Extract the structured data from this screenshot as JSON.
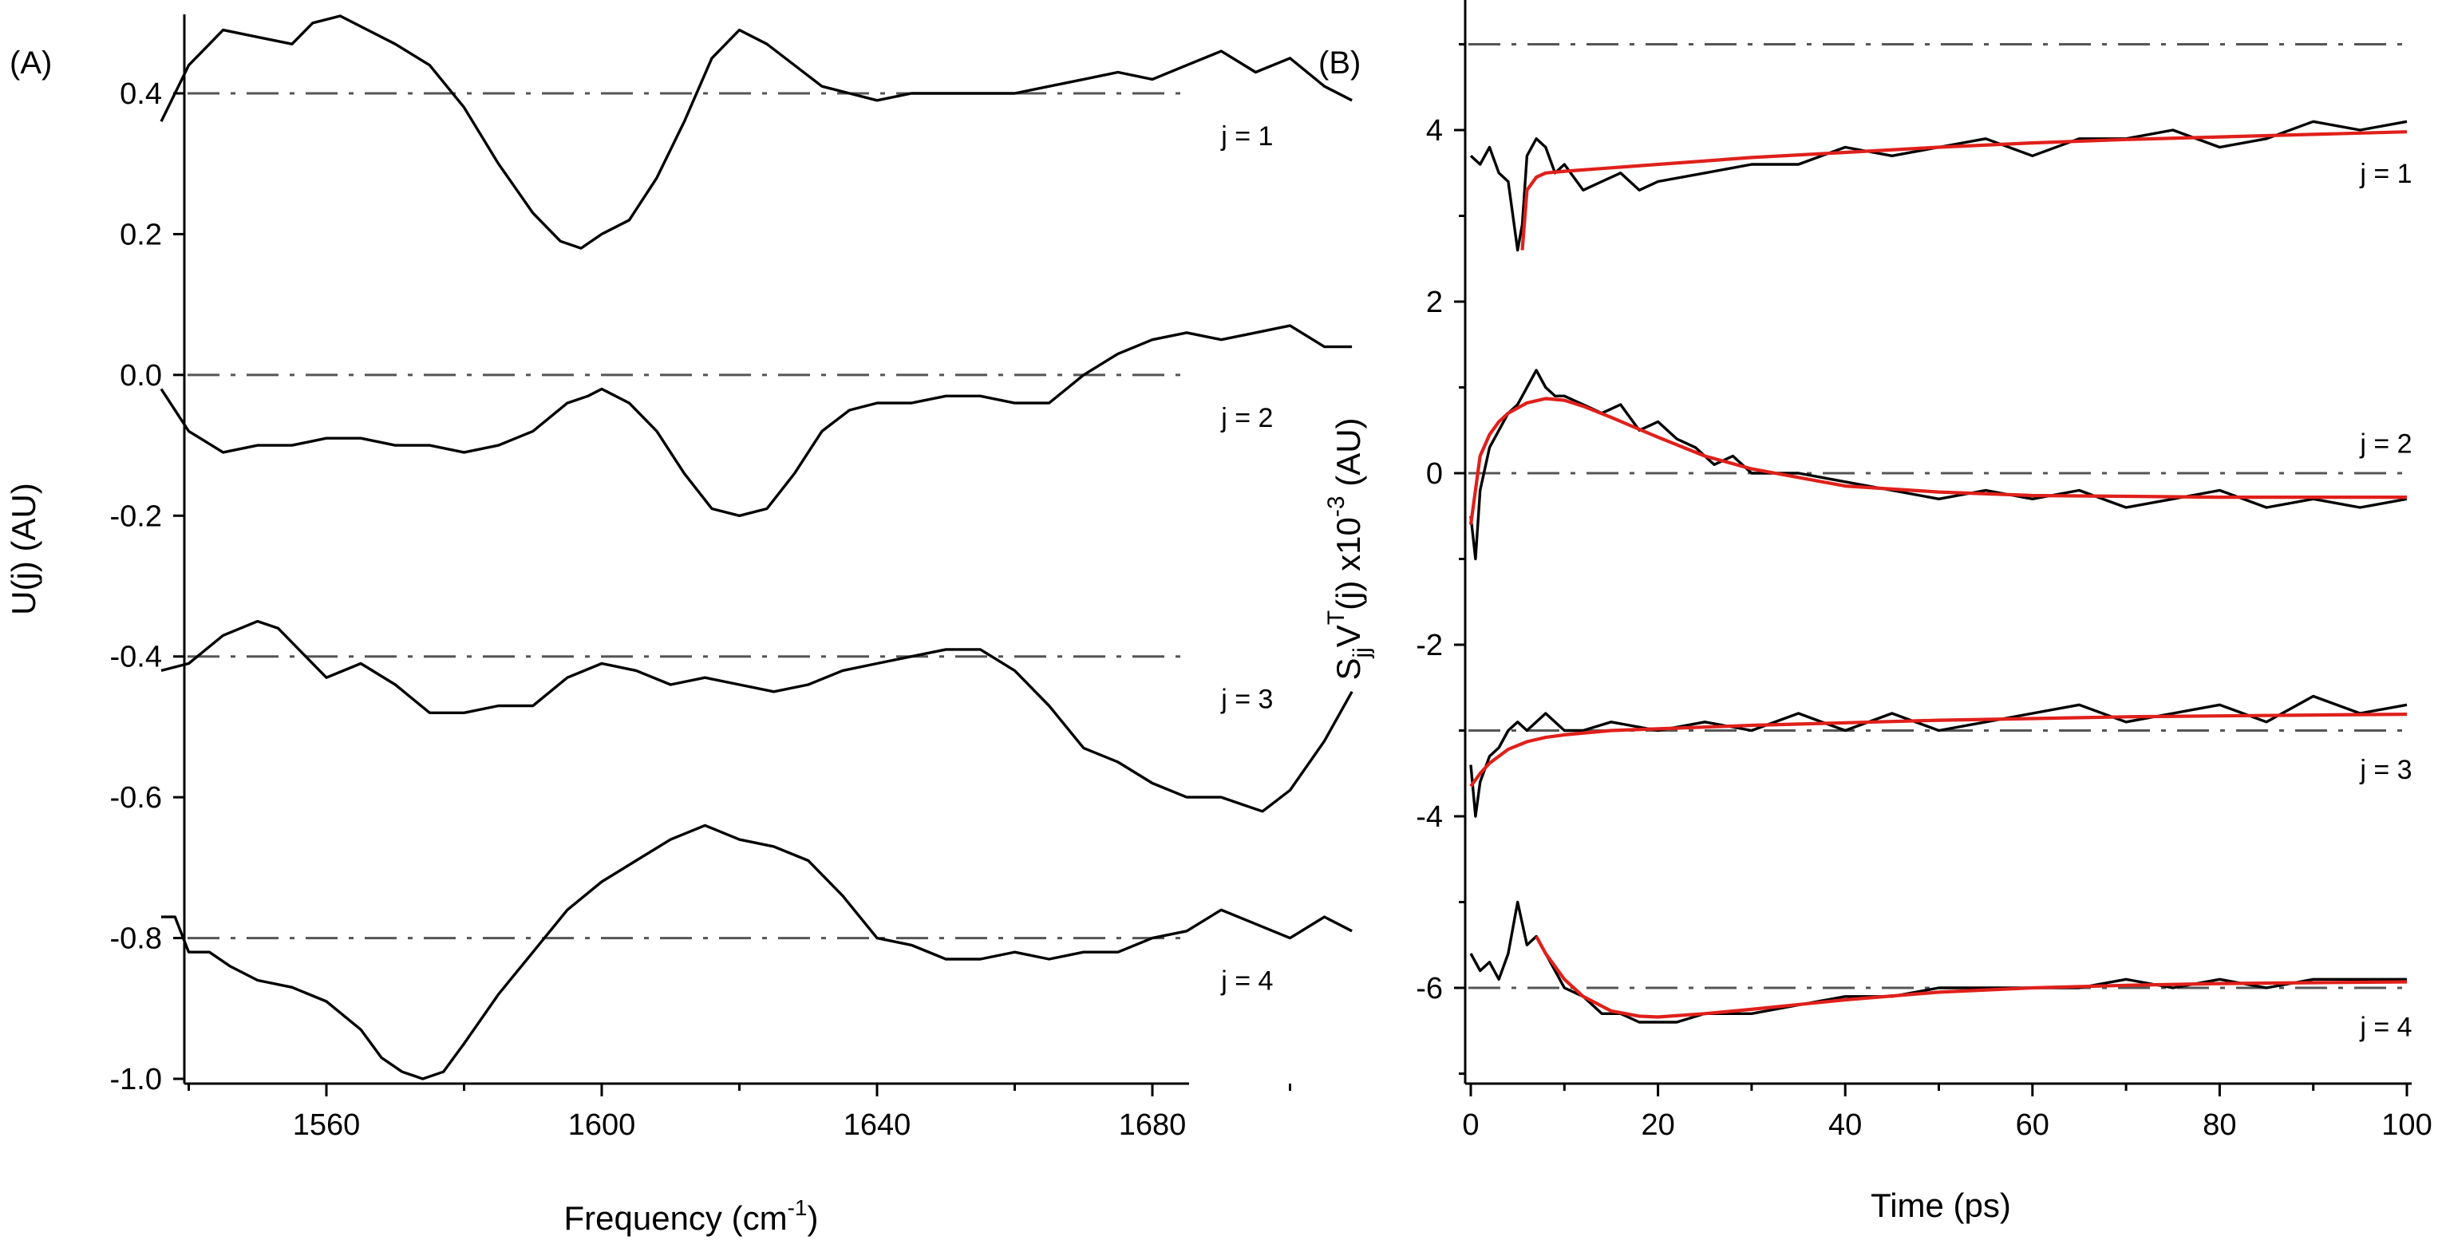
{
  "chart_data": [
    {
      "type": "line",
      "panel_label": "(A)",
      "xlabel": "Frequency (cm",
      "xlabel_sup": "-1",
      "xlabel_end": ")",
      "ylabel": "U(j) (AU)",
      "xlim": [
        1535,
        1710
      ],
      "ylim": [
        -1.0,
        0.5
      ],
      "xticks": [
        1560,
        1600,
        1640,
        1680
      ],
      "xtick_labels": [
        "1560",
        "1600",
        "1640",
        "1680"
      ],
      "yticks": [
        0.4,
        0.2,
        0.0,
        -0.2,
        -0.4,
        -0.6,
        -0.8,
        -1.0
      ],
      "ytick_labels": [
        "0.4",
        "0.2",
        "0.0",
        "-0.2",
        "-0.4",
        "-0.6",
        "-0.8",
        "-1.0"
      ],
      "reference_lines": [
        0.4,
        0.0,
        -0.4,
        -0.8
      ],
      "series": [
        {
          "name": "j = 1",
          "label_x": 1690,
          "label_y": 0.34,
          "x": [
            1536,
            1540,
            1545,
            1550,
            1555,
            1558,
            1562,
            1566,
            1570,
            1575,
            1580,
            1585,
            1590,
            1594,
            1597,
            1600,
            1604,
            1608,
            1612,
            1616,
            1620,
            1624,
            1628,
            1632,
            1636,
            1640,
            1645,
            1650,
            1655,
            1660,
            1665,
            1670,
            1675,
            1680,
            1685,
            1690,
            1695,
            1700,
            1705,
            1709
          ],
          "values": [
            0.36,
            0.44,
            0.49,
            0.48,
            0.47,
            0.5,
            0.51,
            0.49,
            0.47,
            0.44,
            0.38,
            0.3,
            0.23,
            0.19,
            0.18,
            0.2,
            0.22,
            0.28,
            0.36,
            0.45,
            0.49,
            0.47,
            0.44,
            0.41,
            0.4,
            0.39,
            0.4,
            0.4,
            0.4,
            0.4,
            0.41,
            0.42,
            0.43,
            0.42,
            0.44,
            0.46,
            0.43,
            0.45,
            0.41,
            0.39
          ]
        },
        {
          "name": "j = 2",
          "label_x": 1690,
          "label_y": -0.06,
          "x": [
            1536,
            1540,
            1545,
            1550,
            1555,
            1560,
            1565,
            1570,
            1575,
            1580,
            1585,
            1590,
            1595,
            1598,
            1600,
            1604,
            1608,
            1612,
            1616,
            1620,
            1624,
            1628,
            1632,
            1636,
            1640,
            1645,
            1650,
            1655,
            1660,
            1665,
            1670,
            1675,
            1680,
            1685,
            1690,
            1695,
            1700,
            1705,
            1709
          ],
          "values": [
            -0.02,
            -0.08,
            -0.11,
            -0.1,
            -0.1,
            -0.09,
            -0.09,
            -0.1,
            -0.1,
            -0.11,
            -0.1,
            -0.08,
            -0.04,
            -0.03,
            -0.02,
            -0.04,
            -0.08,
            -0.14,
            -0.19,
            -0.2,
            -0.19,
            -0.14,
            -0.08,
            -0.05,
            -0.04,
            -0.04,
            -0.03,
            -0.03,
            -0.04,
            -0.04,
            0.0,
            0.03,
            0.05,
            0.06,
            0.05,
            0.06,
            0.07,
            0.04,
            0.04
          ]
        },
        {
          "name": "j = 3",
          "label_x": 1690,
          "label_y": -0.46,
          "x": [
            1536,
            1540,
            1545,
            1550,
            1553,
            1556,
            1560,
            1565,
            1570,
            1575,
            1580,
            1585,
            1590,
            1595,
            1600,
            1605,
            1610,
            1615,
            1620,
            1625,
            1630,
            1635,
            1640,
            1645,
            1650,
            1655,
            1660,
            1665,
            1670,
            1675,
            1680,
            1685,
            1690,
            1693,
            1696,
            1700,
            1705,
            1709
          ],
          "values": [
            -0.42,
            -0.41,
            -0.37,
            -0.35,
            -0.36,
            -0.39,
            -0.43,
            -0.41,
            -0.44,
            -0.48,
            -0.48,
            -0.47,
            -0.47,
            -0.43,
            -0.41,
            -0.42,
            -0.44,
            -0.43,
            -0.44,
            -0.45,
            -0.44,
            -0.42,
            -0.41,
            -0.4,
            -0.39,
            -0.39,
            -0.42,
            -0.47,
            -0.53,
            -0.55,
            -0.58,
            -0.6,
            -0.6,
            -0.61,
            -0.62,
            -0.59,
            -0.52,
            -0.45
          ]
        },
        {
          "name": "j = 4",
          "label_x": 1690,
          "label_y": -0.86,
          "x": [
            1536,
            1538,
            1540,
            1543,
            1546,
            1550,
            1555,
            1560,
            1565,
            1568,
            1571,
            1574,
            1577,
            1580,
            1585,
            1590,
            1595,
            1600,
            1605,
            1610,
            1615,
            1620,
            1625,
            1630,
            1635,
            1640,
            1645,
            1650,
            1655,
            1660,
            1665,
            1670,
            1675,
            1680,
            1685,
            1690,
            1695,
            1700,
            1705,
            1709
          ],
          "values": [
            -0.77,
            -0.77,
            -0.82,
            -0.82,
            -0.84,
            -0.86,
            -0.87,
            -0.89,
            -0.93,
            -0.97,
            -0.99,
            -1.0,
            -0.99,
            -0.95,
            -0.88,
            -0.82,
            -0.76,
            -0.72,
            -0.69,
            -0.66,
            -0.64,
            -0.66,
            -0.67,
            -0.69,
            -0.74,
            -0.8,
            -0.81,
            -0.83,
            -0.83,
            -0.82,
            -0.83,
            -0.82,
            -0.82,
            -0.8,
            -0.79,
            -0.76,
            -0.78,
            -0.8,
            -0.77,
            -0.79
          ]
        }
      ]
    },
    {
      "type": "line",
      "panel_label": "(B)",
      "xlabel": "Time (ps)",
      "ylabel_main": "S",
      "ylabel_sub": "jj",
      "ylabel_mid": "V",
      "ylabel_sup1": "T",
      "ylabel_tail": "(j) x10",
      "ylabel_sup2": "-3",
      "ylabel_end": " (AU)",
      "xlim": [
        -0.5,
        100
      ],
      "ylim": [
        -7,
        5.5
      ],
      "xticks": [
        0,
        20,
        40,
        60,
        80,
        100
      ],
      "xtick_labels": [
        "0",
        "20",
        "40",
        "60",
        "80",
        "100"
      ],
      "yticks": [
        4,
        2,
        0,
        -2,
        -4,
        -6
      ],
      "ytick_labels": [
        "4",
        "2",
        "0",
        "-2",
        "-4",
        "-6"
      ],
      "reference_lines": [
        5,
        0,
        -3,
        -6
      ],
      "series": [
        {
          "name": "j = 1",
          "label_x": 95,
          "label_y": 3.5,
          "x": [
            0,
            1,
            2,
            3,
            4,
            5,
            5.5,
            6,
            7,
            8,
            9,
            10,
            12,
            14,
            16,
            18,
            20,
            25,
            30,
            35,
            40,
            45,
            50,
            55,
            60,
            65,
            70,
            75,
            80,
            85,
            90,
            95,
            100
          ],
          "values": [
            3.7,
            3.6,
            3.8,
            3.5,
            3.4,
            2.6,
            2.9,
            3.7,
            3.9,
            3.8,
            3.5,
            3.6,
            3.3,
            3.4,
            3.5,
            3.3,
            3.4,
            3.5,
            3.6,
            3.6,
            3.8,
            3.7,
            3.8,
            3.9,
            3.7,
            3.9,
            3.9,
            4.0,
            3.8,
            3.9,
            4.1,
            4.0,
            4.1
          ],
          "fit_x": [
            5.5,
            6,
            7,
            8,
            10,
            15,
            20,
            30,
            40,
            50,
            60,
            70,
            80,
            90,
            100
          ],
          "fit_values": [
            2.6,
            3.3,
            3.45,
            3.5,
            3.52,
            3.56,
            3.6,
            3.68,
            3.74,
            3.8,
            3.85,
            3.89,
            3.92,
            3.95,
            3.98
          ]
        },
        {
          "name": "j = 2",
          "label_x": 95,
          "label_y": 0.35,
          "x": [
            0,
            0.5,
            1,
            2,
            3,
            4,
            5,
            6,
            7,
            8,
            9,
            10,
            12,
            14,
            16,
            18,
            20,
            22,
            24,
            26,
            28,
            30,
            35,
            40,
            45,
            50,
            55,
            60,
            65,
            70,
            75,
            80,
            85,
            90,
            95,
            100
          ],
          "values": [
            -0.5,
            -1.0,
            -0.2,
            0.3,
            0.5,
            0.7,
            0.8,
            1.0,
            1.2,
            1.0,
            0.9,
            0.9,
            0.8,
            0.7,
            0.8,
            0.5,
            0.6,
            0.4,
            0.3,
            0.1,
            0.2,
            0.0,
            0.0,
            -0.1,
            -0.2,
            -0.3,
            -0.2,
            -0.3,
            -0.2,
            -0.4,
            -0.3,
            -0.2,
            -0.4,
            -0.3,
            -0.4,
            -0.3
          ],
          "fit_x": [
            0,
            1,
            2,
            3,
            4,
            6,
            8,
            10,
            12,
            15,
            20,
            25,
            30,
            40,
            50,
            60,
            70,
            80,
            90,
            100
          ],
          "fit_values": [
            -0.6,
            0.2,
            0.45,
            0.6,
            0.7,
            0.82,
            0.87,
            0.85,
            0.78,
            0.65,
            0.42,
            0.2,
            0.05,
            -0.15,
            -0.22,
            -0.26,
            -0.27,
            -0.28,
            -0.28,
            -0.28
          ]
        },
        {
          "name": "j = 3",
          "label_x": 95,
          "label_y": -3.45,
          "x": [
            0,
            0.5,
            1,
            2,
            3,
            4,
            5,
            6,
            8,
            10,
            12,
            15,
            20,
            25,
            30,
            35,
            40,
            45,
            50,
            55,
            60,
            65,
            70,
            75,
            80,
            85,
            90,
            95,
            100
          ],
          "values": [
            -3.4,
            -4.0,
            -3.6,
            -3.3,
            -3.2,
            -3.0,
            -2.9,
            -3.0,
            -2.8,
            -3.0,
            -3.0,
            -2.9,
            -3.0,
            -2.9,
            -3.0,
            -2.8,
            -3.0,
            -2.8,
            -3.0,
            -2.9,
            -2.8,
            -2.7,
            -2.9,
            -2.8,
            -2.7,
            -2.9,
            -2.6,
            -2.8,
            -2.7
          ],
          "fit_x": [
            0,
            1,
            2,
            4,
            6,
            8,
            10,
            15,
            20,
            30,
            40,
            50,
            60,
            70,
            80,
            90,
            100
          ],
          "fit_values": [
            -3.65,
            -3.5,
            -3.38,
            -3.22,
            -3.13,
            -3.08,
            -3.05,
            -3.0,
            -2.98,
            -2.94,
            -2.91,
            -2.88,
            -2.86,
            -2.84,
            -2.83,
            -2.82,
            -2.81
          ]
        },
        {
          "name": "j = 4",
          "label_x": 95,
          "label_y": -6.45,
          "x": [
            0,
            1,
            2,
            3,
            4,
            5,
            6,
            7,
            8,
            9,
            10,
            12,
            14,
            16,
            18,
            20,
            22,
            25,
            30,
            35,
            40,
            45,
            50,
            55,
            60,
            65,
            70,
            75,
            80,
            85,
            90,
            95,
            100
          ],
          "values": [
            -5.6,
            -5.8,
            -5.7,
            -5.9,
            -5.6,
            -5.0,
            -5.5,
            -5.4,
            -5.6,
            -5.8,
            -6.0,
            -6.1,
            -6.3,
            -6.3,
            -6.4,
            -6.4,
            -6.4,
            -6.3,
            -6.3,
            -6.2,
            -6.1,
            -6.1,
            -6.0,
            -6.0,
            -6.0,
            -6.0,
            -5.9,
            -6.0,
            -5.9,
            -6.0,
            -5.9,
            -5.9,
            -5.9
          ],
          "fit_x": [
            7,
            8,
            10,
            12,
            15,
            18,
            20,
            25,
            30,
            40,
            50,
            60,
            70,
            80,
            90,
            100
          ],
          "fit_values": [
            -5.4,
            -5.6,
            -5.9,
            -6.1,
            -6.27,
            -6.33,
            -6.34,
            -6.3,
            -6.25,
            -6.14,
            -6.05,
            -6.0,
            -5.97,
            -5.95,
            -5.94,
            -5.93
          ]
        }
      ]
    }
  ]
}
